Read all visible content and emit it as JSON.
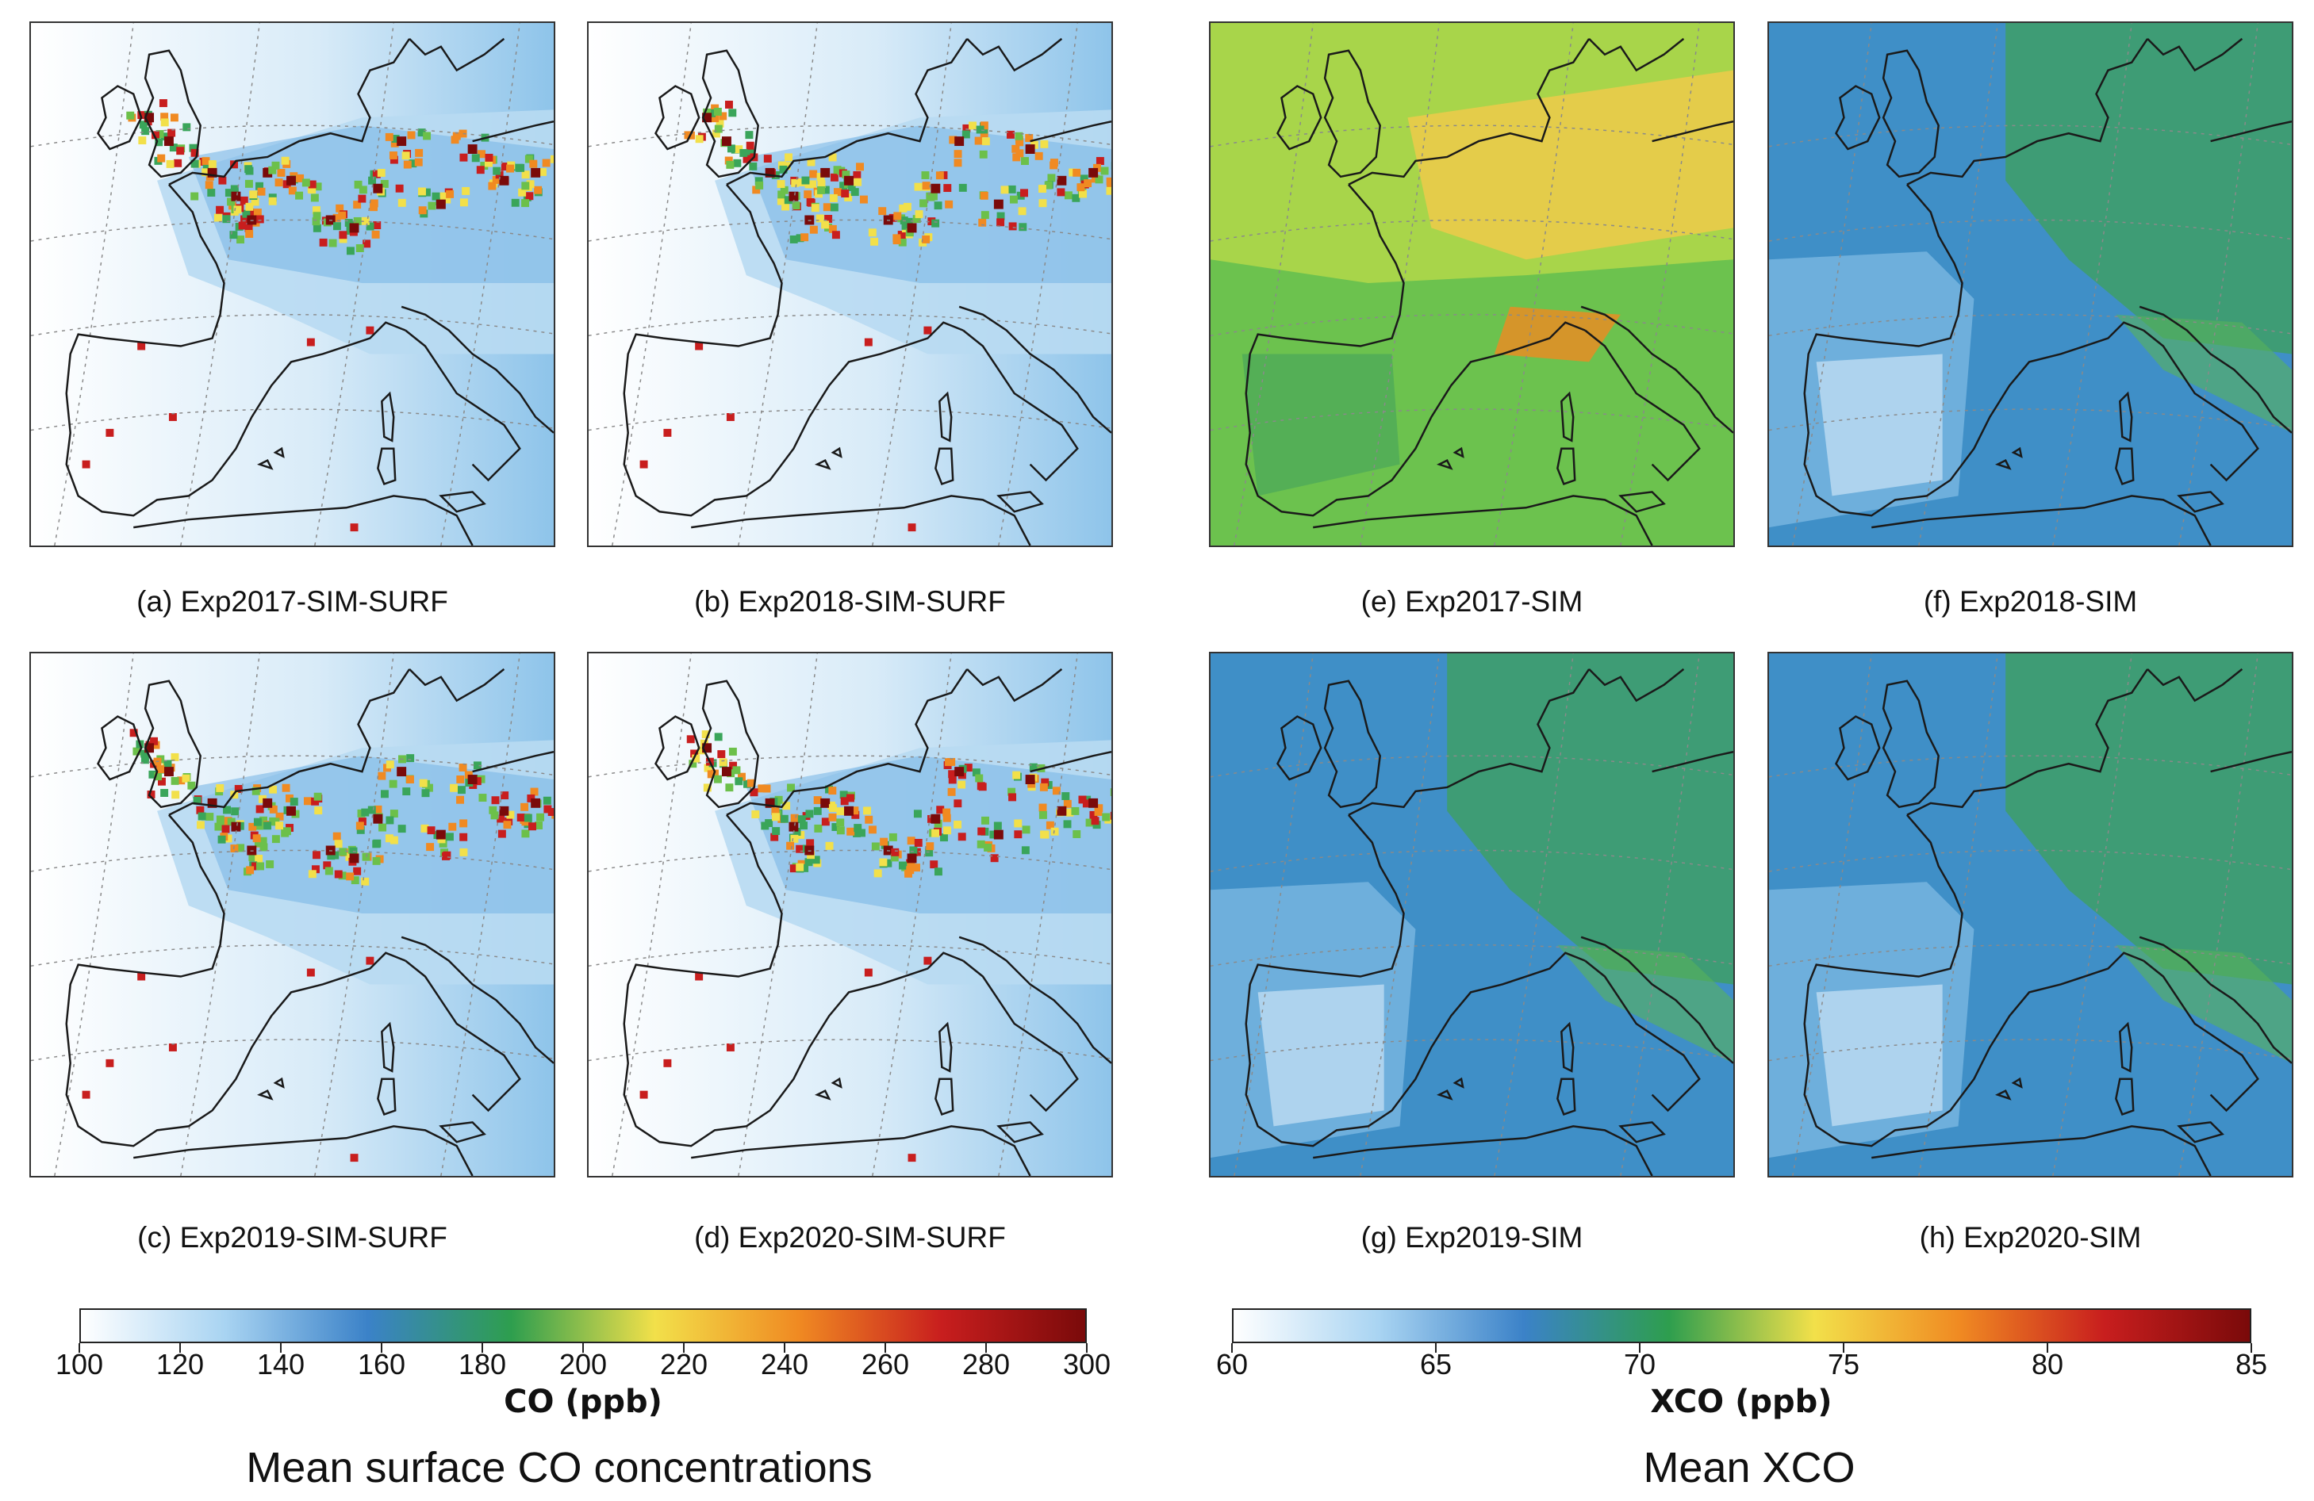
{
  "panels": [
    {
      "caption": "(a) Exp2017-SIM-SURF",
      "group": "co",
      "variant": 0
    },
    {
      "caption": "(b) Exp2018-SIM-SURF",
      "group": "co",
      "variant": 1
    },
    {
      "caption": "(e) Exp2017-SIM",
      "group": "xco",
      "variant": 0
    },
    {
      "caption": "(f) Exp2018-SIM",
      "group": "xco",
      "variant": 1
    },
    {
      "caption": "(c) Exp2019-SIM-SURF",
      "group": "co",
      "variant": 2
    },
    {
      "caption": "(d) Exp2020-SIM-SURF",
      "group": "co",
      "variant": 3
    },
    {
      "caption": "(g) Exp2019-SIM",
      "group": "xco",
      "variant": 2
    },
    {
      "caption": "(h) Exp2020-SIM",
      "group": "xco",
      "variant": 3
    }
  ],
  "colorbars": {
    "co": {
      "label": "CO (ppb)",
      "ticks": [
        "100",
        "120",
        "140",
        "160",
        "180",
        "200",
        "220",
        "240",
        "260",
        "280",
        "300"
      ],
      "range": [
        100,
        300
      ]
    },
    "xco": {
      "label": "XCO (ppb)",
      "ticks": [
        "60",
        "65",
        "70",
        "75",
        "80",
        "85"
      ],
      "range": [
        60,
        85
      ]
    }
  },
  "titles": {
    "co": "Mean surface CO concentrations",
    "xco": "Mean XCO"
  },
  "colormap": [
    "#ffffff",
    "#a9d4f2",
    "#3b82c8",
    "#2e9e4e",
    "#f2e04a",
    "#f08a22",
    "#c81e1e",
    "#7a0a0a"
  ]
}
